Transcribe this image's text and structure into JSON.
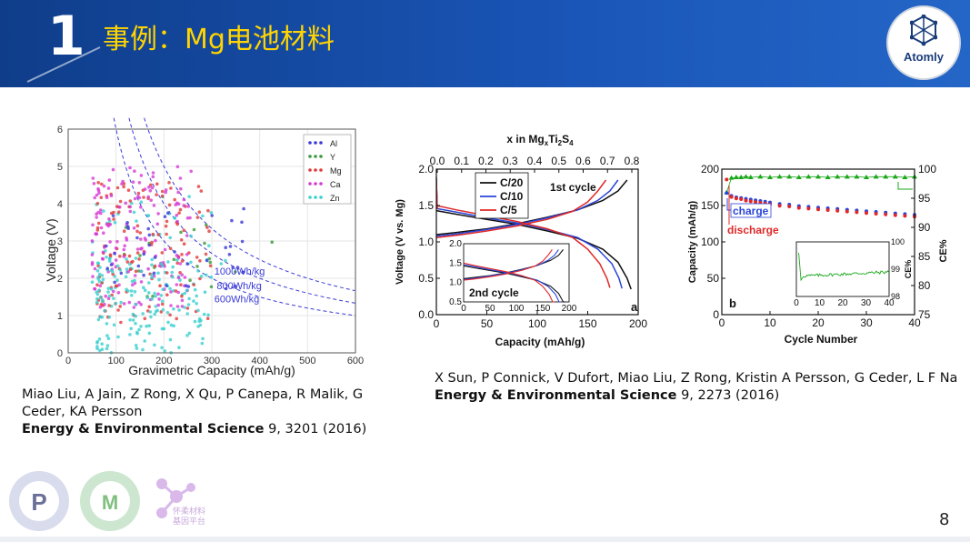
{
  "slide": {
    "number_badge": "1",
    "title": "事例：Mg电池材料",
    "page_number": "8"
  },
  "logo": {
    "text": "Atomly"
  },
  "footer": {
    "logo3_text": "怀柔材料 基因平台"
  },
  "citations": [
    {
      "authors": "Miao Liu, A Jain, Z Rong, X Qu, P Canepa, R Malik, G Ceder, KA Persson",
      "journal": "Energy & Environmental Science",
      "details": " 9, 3201 (2016)"
    },
    {
      "authors": "X Sun, P Connick, V Dufort, Miao Liu, Z Rong, Kristin A Persson, G Ceder, L F Na",
      "journal": "Energy & Environmental Science",
      "details": " 9, 2273 (2016)"
    }
  ],
  "chart_data": [
    {
      "type": "scatter",
      "xlabel": "Gravimetric Capacity (mAh/g)",
      "ylabel": "Voltage (V)",
      "xlim": [
        0,
        600
      ],
      "ylim": [
        0,
        6
      ],
      "xticks": [
        "0",
        "100",
        "200",
        "300",
        "400",
        "500",
        "600"
      ],
      "yticks": [
        "0",
        "1",
        "2",
        "3",
        "4",
        "5",
        "6"
      ],
      "grid": true,
      "legend_position": "top-right",
      "series": [
        {
          "name": "Al",
          "color": "#3a3ad8"
        },
        {
          "name": "Y",
          "color": "#3a9a3a"
        },
        {
          "name": "Mg",
          "color": "#e23a3a"
        },
        {
          "name": "Ca",
          "color": "#d63ad6"
        },
        {
          "name": "Zn",
          "color": "#3ad0d0"
        }
      ],
      "energy_density_curves": [
        {
          "label": "1000Wh/kg",
          "wh_per_kg": 1000
        },
        {
          "label": "800Wh/kg",
          "wh_per_kg": 800
        },
        {
          "label": "600Wh/kg",
          "wh_per_kg": 600
        }
      ]
    },
    {
      "type": "line",
      "panel": "a",
      "title": "x in MgxTi2S4",
      "xlabel": "Capacity (mAh/g)",
      "ylabel": "Voltage (V vs. Mg)",
      "xlim": [
        0,
        200
      ],
      "ylim": [
        0,
        2.0
      ],
      "xticks": [
        "0",
        "50",
        "100",
        "150",
        "200"
      ],
      "yticks": [
        "0.0",
        "0.5",
        "1.0",
        "1.5",
        "2.0"
      ],
      "top_ticks": [
        "0.0",
        "0.1",
        "0.2",
        "0.3",
        "0.4",
        "0.5",
        "0.6",
        "0.7",
        "0.8"
      ],
      "annotation": "1st cycle",
      "series": [
        {
          "name": "C/20",
          "color": "#111111",
          "discharge": [
            [
              0,
              1.43
            ],
            [
              20,
              1.38
            ],
            [
              50,
              1.31
            ],
            [
              80,
              1.24
            ],
            [
              110,
              1.15
            ],
            [
              140,
              1.05
            ],
            [
              165,
              0.9
            ],
            [
              180,
              0.72
            ],
            [
              189,
              0.5
            ],
            [
              193,
              0.35
            ]
          ],
          "charge": [
            [
              0,
              1.1
            ],
            [
              20,
              1.13
            ],
            [
              50,
              1.18
            ],
            [
              80,
              1.25
            ],
            [
              110,
              1.34
            ],
            [
              140,
              1.44
            ],
            [
              165,
              1.57
            ],
            [
              180,
              1.7
            ],
            [
              189,
              1.85
            ]
          ]
        },
        {
          "name": "C/10",
          "color": "#2a45d8",
          "discharge": [
            [
              0,
              1.46
            ],
            [
              20,
              1.41
            ],
            [
              50,
              1.33
            ],
            [
              80,
              1.26
            ],
            [
              110,
              1.17
            ],
            [
              140,
              1.06
            ],
            [
              160,
              0.9
            ],
            [
              174,
              0.7
            ],
            [
              181,
              0.5
            ],
            [
              184,
              0.36
            ]
          ],
          "charge": [
            [
              0,
              1.08
            ],
            [
              20,
              1.11
            ],
            [
              50,
              1.17
            ],
            [
              80,
              1.24
            ],
            [
              110,
              1.33
            ],
            [
              140,
              1.44
            ],
            [
              160,
              1.57
            ],
            [
              172,
              1.7
            ],
            [
              180,
              1.85
            ]
          ]
        },
        {
          "name": "C/5",
          "color": "#e02828",
          "discharge": [
            [
              0,
              1.5
            ],
            [
              20,
              1.44
            ],
            [
              50,
              1.36
            ],
            [
              80,
              1.28
            ],
            [
              110,
              1.18
            ],
            [
              135,
              1.06
            ],
            [
              150,
              0.9
            ],
            [
              162,
              0.7
            ],
            [
              169,
              0.5
            ],
            [
              172,
              0.37
            ]
          ],
          "charge": [
            [
              0,
              1.06
            ],
            [
              20,
              1.09
            ],
            [
              50,
              1.15
            ],
            [
              80,
              1.22
            ],
            [
              110,
              1.31
            ],
            [
              135,
              1.42
            ],
            [
              150,
              1.55
            ],
            [
              160,
              1.7
            ],
            [
              168,
              1.85
            ]
          ]
        }
      ],
      "inset": {
        "annotation": "2nd cycle",
        "xlim": [
          0,
          200
        ],
        "ylim": [
          0.5,
          2.0
        ],
        "xticks": [
          "0",
          "50",
          "100",
          "150",
          "200"
        ],
        "yticks": [
          "0.5",
          "1.0",
          "1.5",
          "2.0"
        ]
      }
    },
    {
      "type": "line",
      "panel": "b",
      "xlabel": "Cycle Number",
      "ylabel": "Capacity (mAh/g)",
      "y2label": "CE%",
      "xlim": [
        0,
        40
      ],
      "ylim": [
        0,
        200
      ],
      "y2lim": [
        75,
        100
      ],
      "xticks": [
        "0",
        "10",
        "20",
        "30",
        "40"
      ],
      "yticks": [
        "0",
        "50",
        "100",
        "150",
        "200"
      ],
      "y2ticks": [
        "75",
        "80",
        "85",
        "90",
        "95",
        "100"
      ],
      "series": [
        {
          "name": "charge",
          "color": "#2a45d8",
          "x": [
            1,
            2,
            3,
            4,
            5,
            6,
            7,
            8,
            9,
            10,
            12,
            14,
            16,
            18,
            20,
            22,
            24,
            26,
            28,
            30,
            32,
            34,
            36,
            38,
            40
          ],
          "values": [
            166,
            162,
            160,
            159,
            158,
            157,
            156,
            155,
            154,
            153,
            151,
            150,
            148,
            147,
            146,
            145,
            144,
            143,
            142,
            141,
            140,
            139,
            138,
            137,
            136
          ]
        },
        {
          "name": "discharge",
          "color": "#e02828",
          "x": [
            1,
            2,
            3,
            4,
            5,
            6,
            7,
            8,
            9,
            10,
            12,
            14,
            16,
            18,
            20,
            22,
            24,
            26,
            28,
            30,
            32,
            34,
            36,
            38,
            40
          ],
          "values": [
            187,
            163,
            161,
            160,
            158,
            157,
            156,
            155,
            154,
            153,
            151,
            150,
            148,
            147,
            146,
            145,
            144,
            143,
            142,
            141,
            140,
            139,
            138,
            137,
            136
          ]
        },
        {
          "name": "CE%",
          "color": "#1aa81a",
          "x": [
            1,
            2,
            3,
            4,
            5,
            6,
            8,
            10,
            12,
            14,
            16,
            18,
            20,
            22,
            24,
            26,
            28,
            30,
            32,
            34,
            36,
            38,
            40
          ],
          "values": [
            96,
            98.5,
            98.6,
            98.6,
            98.7,
            98.6,
            98.7,
            98.6,
            98.7,
            98.7,
            98.6,
            98.7,
            98.7,
            98.6,
            98.7,
            98.7,
            98.7,
            98.6,
            98.7,
            98.7,
            98.7,
            98.6,
            98.7
          ]
        }
      ],
      "inset": {
        "xlim": [
          0,
          40
        ],
        "ylim": [
          98,
          100
        ],
        "xticks": [
          "0",
          "10",
          "20",
          "30",
          "40"
        ],
        "yticks": [
          "98",
          "99",
          "100"
        ],
        "ylabel": "CE%"
      }
    }
  ]
}
